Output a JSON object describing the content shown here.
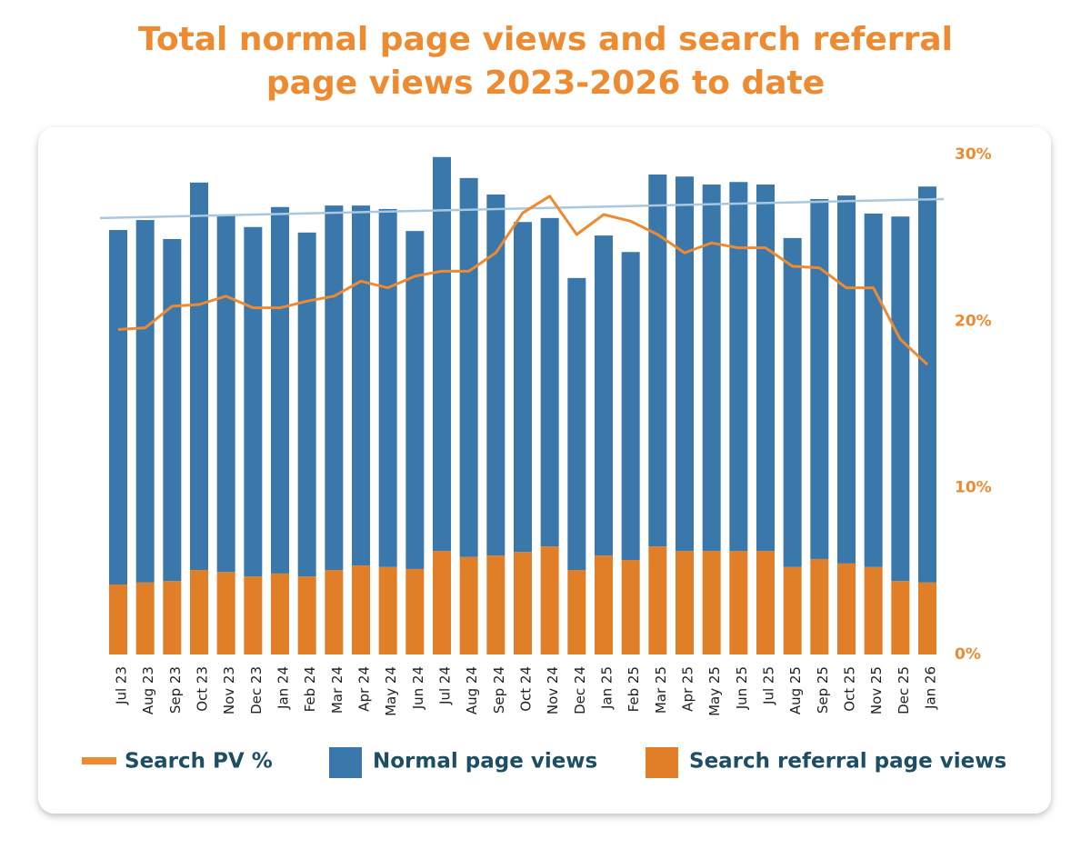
{
  "chart_data": {
    "type": "stacked-bar-line",
    "title": "Total normal page views and search referral",
    "subtitle": "page views 2023-2026 to date",
    "categories": [
      "Jul 23",
      "Aug 23",
      "Sep 23",
      "Oct 23",
      "Nov 23",
      "Dec 23",
      "Jan 24",
      "Feb 24",
      "Mar 24",
      "Apr 24",
      "May 24",
      "Jun 24",
      "Jul 24",
      "Aug 24",
      "Sep 24",
      "Oct 24",
      "Nov 24",
      "Dec 24",
      "Jan 25",
      "Feb 25",
      "Mar 25",
      "Apr 25",
      "May 25",
      "Jun 25",
      "Jul 25",
      "Aug 25",
      "Sep 25",
      "Oct 25",
      "Nov 25",
      "Dec 25",
      "Jan 26"
    ],
    "series": [
      {
        "name": "Search PV %",
        "color": "#ee8a30",
        "axis": "y2",
        "values": [
          19.5,
          19.6,
          20.9,
          21.0,
          21.5,
          20.8,
          20.8,
          21.2,
          21.5,
          22.4,
          22.0,
          22.7,
          23.0,
          23.0,
          24.1,
          26.5,
          27.5,
          25.2,
          26.4,
          26.0,
          25.2,
          24.1,
          24.7,
          24.4,
          24.4,
          23.3,
          23.2,
          22.0,
          22.0,
          18.9,
          17.4
        ]
      },
      {
        "name": "Normal page views",
        "color": "#3a78ab",
        "values": [
          70.9,
          72.5,
          68.4,
          77.5,
          71.3,
          69.9,
          73.3,
          68.8,
          72.9,
          72.0,
          71.6,
          67.6,
          78.8,
          75.8,
          72.2,
          66.0,
          65.7,
          58.4,
          64.0,
          61.6,
          74.4,
          74.9,
          73.3,
          73.8,
          73.3,
          65.8,
          72.0,
          73.6,
          70.7,
          72.9,
          79.2
        ]
      },
      {
        "name": "Search referral page views",
        "color": "#e07f28",
        "values": [
          14.0,
          14.4,
          14.7,
          16.9,
          16.5,
          15.6,
          16.2,
          15.6,
          16.9,
          17.8,
          17.5,
          17.1,
          20.7,
          19.5,
          19.8,
          20.5,
          21.6,
          16.9,
          19.8,
          18.9,
          21.6,
          20.7,
          20.7,
          20.7,
          20.7,
          17.5,
          19.1,
          18.2,
          17.5,
          14.7,
          14.4
        ]
      }
    ],
    "trendline": {
      "color": "#a9c8e0",
      "values": [
        87.3,
        91.1
      ]
    },
    "ylim": [
      0,
      100
    ],
    "y2lim": [
      0,
      30
    ],
    "y2ticks": [
      {
        "value": 0,
        "label": "0%"
      },
      {
        "value": 10,
        "label": "10%"
      },
      {
        "value": 20,
        "label": "20%"
      },
      {
        "value": 30,
        "label": "30%"
      }
    ],
    "legend": "bottom"
  }
}
